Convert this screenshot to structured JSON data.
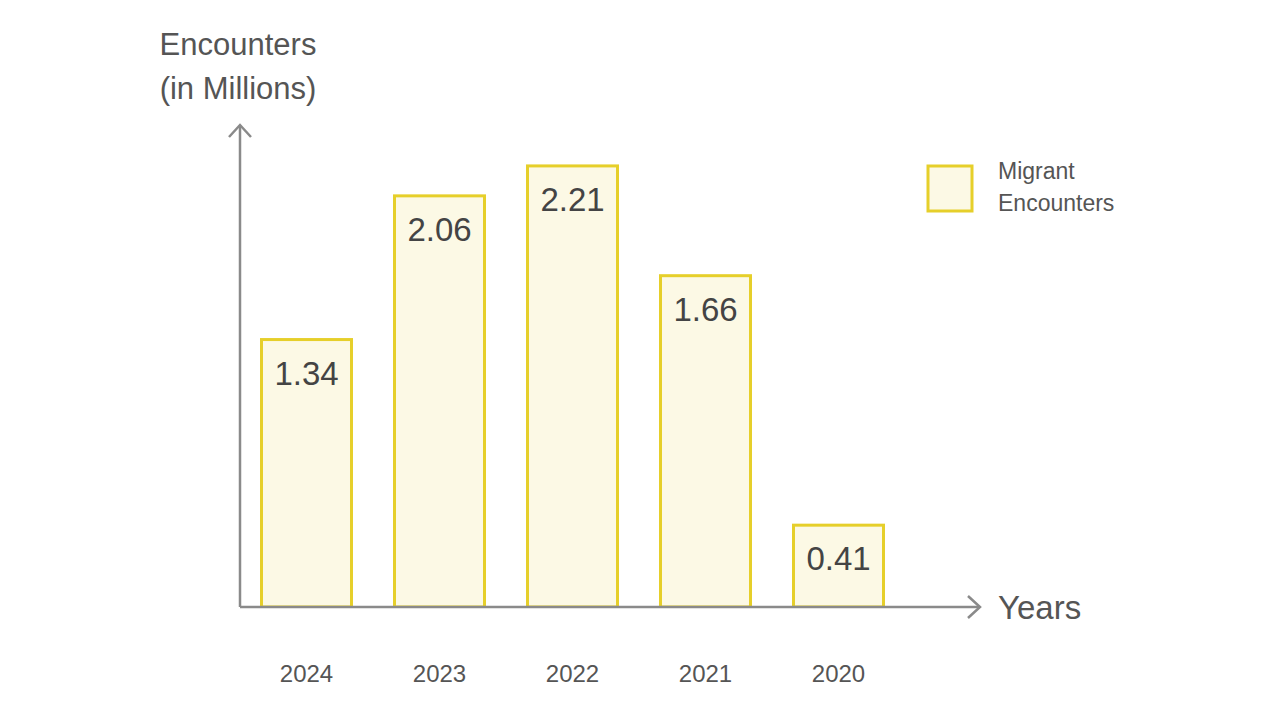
{
  "chart_data": {
    "type": "bar",
    "y_label": "Encounters\n(in Millions)",
    "x_label": "Years",
    "categories": [
      "2024",
      "2023",
      "2022",
      "2021",
      "2020"
    ],
    "series": [
      {
        "name": "Migrant Encounters",
        "color": "#e6cf2a",
        "values": [
          1.34,
          2.06,
          2.21,
          1.66,
          0.41
        ]
      }
    ],
    "ylim": [
      0,
      2.4
    ],
    "data_labels": true,
    "tick_labels": "x",
    "grid": false,
    "legend": "top-right"
  }
}
